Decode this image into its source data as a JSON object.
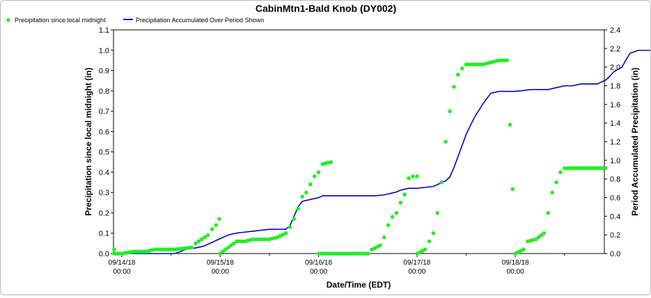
{
  "chart_data": {
    "type": "line",
    "title": "CabinMtn1-Bald Knob (DY002)",
    "xlabel": "Date/Time (EDT)",
    "ylabel_left": "Precipitation since local midnight (in)",
    "ylabel_right": "Period Accumulated Precipitation (in)",
    "ylim_left": [
      0,
      1.1
    ],
    "ylim_right": [
      0,
      2.4
    ],
    "left_ticks": [
      "0.0",
      "0.1",
      "0.2",
      "0.3",
      "0.4",
      "0.5",
      "0.6",
      "0.7",
      "0.8",
      "0.9",
      "1.0",
      "1.1"
    ],
    "right_ticks": [
      "0.0",
      "0.2",
      "0.4",
      "0.6",
      "0.8",
      "1.0",
      "1.2",
      "1.4",
      "1.6",
      "1.8",
      "2.0",
      "2.2",
      "2.4"
    ],
    "x_range_hours": [
      -2,
      96
    ],
    "x_ticks": [
      {
        "hour": 0,
        "date": "09/14/18",
        "time": "00:00"
      },
      {
        "hour": 24,
        "date": "09/15/18",
        "time": "00:00"
      },
      {
        "hour": 48,
        "date": "09/16/18",
        "time": "00:00"
      },
      {
        "hour": 72,
        "date": "09/17/18",
        "time": "00:00"
      },
      {
        "hour": 96,
        "date": "09/18/18",
        "time": "00:00"
      }
    ],
    "minor_x_ticks_hours": [
      12,
      36,
      60,
      84
    ],
    "grid": false,
    "legend_position": "top-left",
    "series": [
      {
        "name": "Precipitation since local midnight",
        "axis": "left",
        "style": "points",
        "color": "#22ee22",
        "points": [
          [
            -5,
            0.02
          ],
          [
            -3,
            0.02
          ],
          [
            -2.2,
            0.0
          ],
          [
            0,
            0.0
          ],
          [
            3,
            0.01
          ],
          [
            6,
            0.01
          ],
          [
            8,
            0.02
          ],
          [
            13,
            0.02
          ],
          [
            17,
            0.03
          ],
          [
            18,
            0.05
          ],
          [
            19.5,
            0.07
          ],
          [
            21,
            0.09
          ],
          [
            22,
            0.12
          ],
          [
            23,
            0.14
          ],
          [
            23.8,
            0.17
          ],
          [
            24,
            0.0
          ],
          [
            26,
            0.03
          ],
          [
            28,
            0.06
          ],
          [
            30,
            0.06
          ],
          [
            32,
            0.07
          ],
          [
            34,
            0.07
          ],
          [
            36,
            0.07
          ],
          [
            38,
            0.08
          ],
          [
            40,
            0.1
          ],
          [
            41,
            0.13
          ],
          [
            42,
            0.17
          ],
          [
            43,
            0.22
          ],
          [
            44,
            0.28
          ],
          [
            45,
            0.3
          ],
          [
            46,
            0.34
          ],
          [
            47,
            0.38
          ],
          [
            48,
            0.4
          ],
          [
            49,
            0.44
          ],
          [
            51,
            0.45
          ],
          [
            48.1,
            0.0
          ],
          [
            60,
            0.0
          ],
          [
            61,
            0.02
          ],
          [
            63,
            0.04
          ],
          [
            64,
            0.08
          ],
          [
            65,
            0.14
          ],
          [
            66,
            0.18
          ],
          [
            67,
            0.2
          ],
          [
            68,
            0.25
          ],
          [
            69,
            0.29
          ],
          [
            70,
            0.37
          ],
          [
            71,
            0.38
          ],
          [
            72,
            0.38
          ],
          [
            72.1,
            0.0
          ],
          [
            74,
            0.02
          ],
          [
            75,
            0.06
          ],
          [
            76,
            0.1
          ],
          [
            77,
            0.2
          ],
          [
            78,
            0.35
          ],
          [
            79,
            0.55
          ],
          [
            80,
            0.7
          ],
          [
            81,
            0.82
          ],
          [
            82,
            0.88
          ],
          [
            83,
            0.91
          ],
          [
            84,
            0.93
          ],
          [
            88,
            0.93
          ],
          [
            90,
            0.94
          ],
          [
            92,
            0.95
          ],
          [
            94,
            0.95
          ],
          [
            96,
            0.0
          ],
          [
            98,
            0.02
          ],
          [
            99,
            0.06
          ],
          [
            101,
            0.07
          ],
          [
            103,
            0.1
          ],
          [
            104,
            0.2
          ],
          [
            105,
            0.3
          ],
          [
            106,
            0.35
          ],
          [
            107,
            0.4
          ],
          [
            108,
            0.42
          ],
          [
            110,
            0.42
          ],
          [
            118,
            0.42
          ]
        ]
      },
      {
        "name": "Precipitation Accumulated Over Period Shown",
        "axis": "right",
        "style": "line",
        "color": "#0000cc",
        "points": [
          [
            -2,
            0.0
          ],
          [
            13,
            0.0
          ],
          [
            16,
            0.05
          ],
          [
            18,
            0.06
          ],
          [
            20,
            0.08
          ],
          [
            22,
            0.12
          ],
          [
            24,
            0.16
          ],
          [
            26,
            0.2
          ],
          [
            28,
            0.22
          ],
          [
            32,
            0.24
          ],
          [
            36,
            0.26
          ],
          [
            40,
            0.26
          ],
          [
            41,
            0.3
          ],
          [
            42,
            0.4
          ],
          [
            43,
            0.5
          ],
          [
            44,
            0.56
          ],
          [
            46,
            0.58
          ],
          [
            48,
            0.6
          ],
          [
            49,
            0.62
          ],
          [
            51,
            0.62
          ],
          [
            52,
            0.62
          ],
          [
            60,
            0.62
          ],
          [
            62,
            0.62
          ],
          [
            64,
            0.63
          ],
          [
            66,
            0.65
          ],
          [
            67,
            0.66
          ],
          [
            68,
            0.68
          ],
          [
            70,
            0.7
          ],
          [
            72,
            0.7
          ],
          [
            76,
            0.72
          ],
          [
            78,
            0.76
          ],
          [
            79,
            0.78
          ],
          [
            80,
            0.82
          ],
          [
            81,
            0.92
          ],
          [
            82,
            1.04
          ],
          [
            84,
            1.28
          ],
          [
            86,
            1.46
          ],
          [
            88,
            1.6
          ],
          [
            90,
            1.72
          ],
          [
            92,
            1.74
          ],
          [
            96,
            1.74
          ],
          [
            100,
            1.76
          ],
          [
            104,
            1.76
          ],
          [
            106,
            1.78
          ],
          [
            108,
            1.8
          ],
          [
            110,
            1.8
          ],
          [
            112,
            1.82
          ],
          [
            116,
            1.82
          ],
          [
            118,
            1.86
          ],
          [
            119,
            1.9
          ],
          [
            120,
            1.95
          ],
          [
            122,
            2.0
          ],
          [
            123,
            2.08
          ],
          [
            124,
            2.15
          ],
          [
            126,
            2.18
          ],
          [
            132,
            2.18
          ],
          [
            140,
            2.18
          ]
        ]
      }
    ]
  }
}
